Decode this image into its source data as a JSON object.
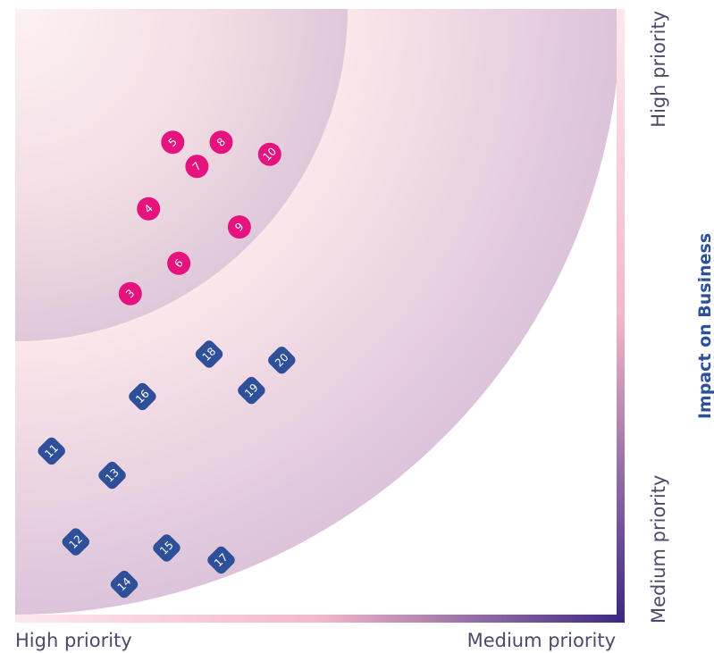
{
  "chart_data": {
    "type": "scatter",
    "title": "",
    "xlabel": "",
    "ylabel": "Impact on Business",
    "x_ticks": [
      "High priority",
      "Medium priority"
    ],
    "y_ticks": [
      "High priority",
      "Medium priority"
    ],
    "xlim": [
      0,
      100
    ],
    "ylim": [
      0,
      100
    ],
    "grid": false,
    "legend": "none",
    "colors": {
      "group_a": "#e6137f",
      "group_b": "#2e4f9a",
      "axis_start": "#fde8ee",
      "axis_mid": "#f3b7c9",
      "axis_end": "#3b2782",
      "ylabel": "#2e4f9a",
      "tick_text": "#4a4a6a"
    },
    "series": [
      {
        "marker": "circle",
        "color": "#e6137f",
        "points": [
          {
            "label": "3",
            "x": 19,
            "y": 53
          },
          {
            "label": "4",
            "x": 22,
            "y": 67
          },
          {
            "label": "5",
            "x": 26,
            "y": 78
          },
          {
            "label": "6",
            "x": 27,
            "y": 58
          },
          {
            "label": "7",
            "x": 30,
            "y": 74
          },
          {
            "label": "8",
            "x": 34,
            "y": 78
          },
          {
            "label": "9",
            "x": 37,
            "y": 64
          },
          {
            "label": "10",
            "x": 42,
            "y": 76
          }
        ]
      },
      {
        "marker": "rounded-square",
        "color": "#2e4f9a",
        "points": [
          {
            "label": "11",
            "x": 6,
            "y": 27
          },
          {
            "label": "12",
            "x": 10,
            "y": 12
          },
          {
            "label": "13",
            "x": 16,
            "y": 23
          },
          {
            "label": "14",
            "x": 18,
            "y": 5
          },
          {
            "label": "15",
            "x": 25,
            "y": 11
          },
          {
            "label": "16",
            "x": 21,
            "y": 36
          },
          {
            "label": "17",
            "x": 34,
            "y": 9
          },
          {
            "label": "18",
            "x": 32,
            "y": 43
          },
          {
            "label": "19",
            "x": 39,
            "y": 37
          },
          {
            "label": "20",
            "x": 44,
            "y": 42
          }
        ]
      }
    ]
  }
}
